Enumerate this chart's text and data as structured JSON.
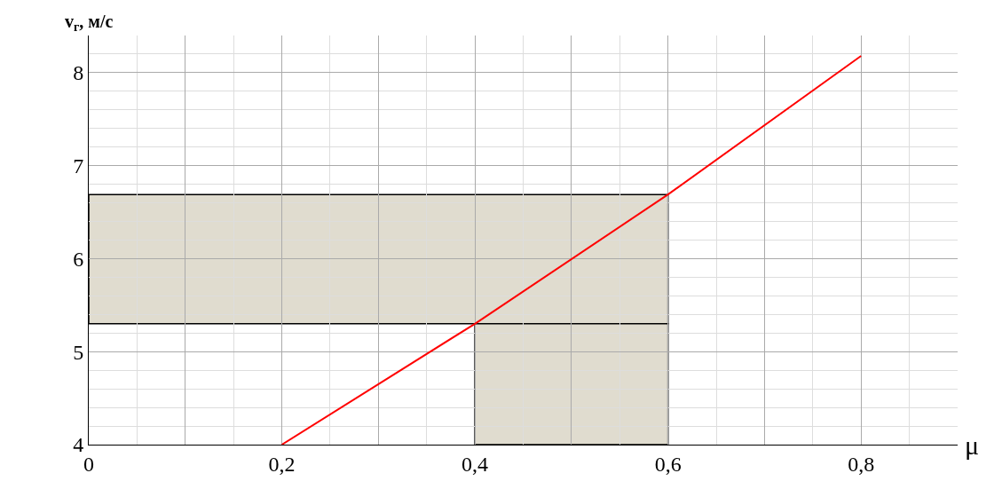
{
  "chart_data": {
    "type": "line",
    "xlabel": "μ",
    "ylabel": "v$_{г}$, м/с",
    "x": [
      0.2,
      0.4,
      0.6,
      0.8
    ],
    "series": [
      {
        "color": "#ff0000",
        "values": [
          4.0,
          5.3,
          6.69,
          8.18
        ]
      }
    ],
    "xlim": [
      0,
      0.9
    ],
    "ylim": [
      4,
      8.4
    ],
    "xticks": [
      {
        "value": 0,
        "label": "0"
      },
      {
        "value": 0.1,
        "label": null
      },
      {
        "value": 0.2,
        "label": "0,2"
      },
      {
        "value": 0.3,
        "label": null
      },
      {
        "value": 0.4,
        "label": "0,4"
      },
      {
        "value": 0.5,
        "label": null
      },
      {
        "value": 0.6,
        "label": "0,6"
      },
      {
        "value": 0.7,
        "label": null
      },
      {
        "value": 0.8,
        "label": "0,8"
      }
    ],
    "yticks": [
      4,
      5,
      6,
      7,
      8
    ],
    "bands": [
      {
        "axis": "y",
        "from": 5.3,
        "to": 6.69,
        "color": "#e0dccf"
      },
      {
        "axis": "x",
        "from": 0.4,
        "to": 0.6,
        "color": "#e0dccf"
      }
    ],
    "grid": true,
    "marker": "none",
    "line_style": "solid"
  }
}
